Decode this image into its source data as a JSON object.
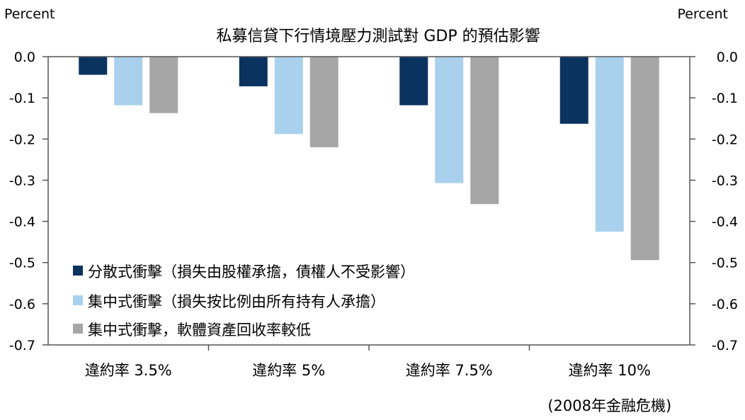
{
  "chart_data": {
    "type": "bar",
    "title": "私募信貸下行情境壓力測試對 GDP 的預估影響",
    "ylabel_left": "Percent",
    "ylabel_right": "Percent",
    "ylim": [
      -0.7,
      0.0
    ],
    "yticks": [
      0.0,
      -0.1,
      -0.2,
      -0.3,
      -0.4,
      -0.5,
      -0.6,
      -0.7
    ],
    "ytick_labels": [
      "0.0",
      "-0.1",
      "-0.2",
      "-0.3",
      "-0.4",
      "-0.5",
      "-0.6",
      "-0.7"
    ],
    "categories": [
      {
        "label": "違約率 3.5%",
        "sublabel": ""
      },
      {
        "label": "違約率 5%",
        "sublabel": ""
      },
      {
        "label": "違約率 7.5%",
        "sublabel": ""
      },
      {
        "label": "違約率 10%",
        "sublabel": "(2008年金融危機)"
      }
    ],
    "series": [
      {
        "name": "分散式衝擊（損失由股權承擔，債權人不受影響）",
        "color": "#0b3360",
        "values": [
          -0.044,
          -0.072,
          -0.118,
          -0.163
        ]
      },
      {
        "name": "集中式衝擊（損失按比例由所有持有人承擔）",
        "color": "#a9d1ee",
        "values": [
          -0.118,
          -0.188,
          -0.307,
          -0.425
        ]
      },
      {
        "name": "集中式衝擊，軟體資產回收率較低",
        "color": "#a6a6a6",
        "values": [
          -0.137,
          -0.22,
          -0.358,
          -0.494
        ]
      }
    ],
    "legend_position": "bottom-left",
    "grid": false
  }
}
